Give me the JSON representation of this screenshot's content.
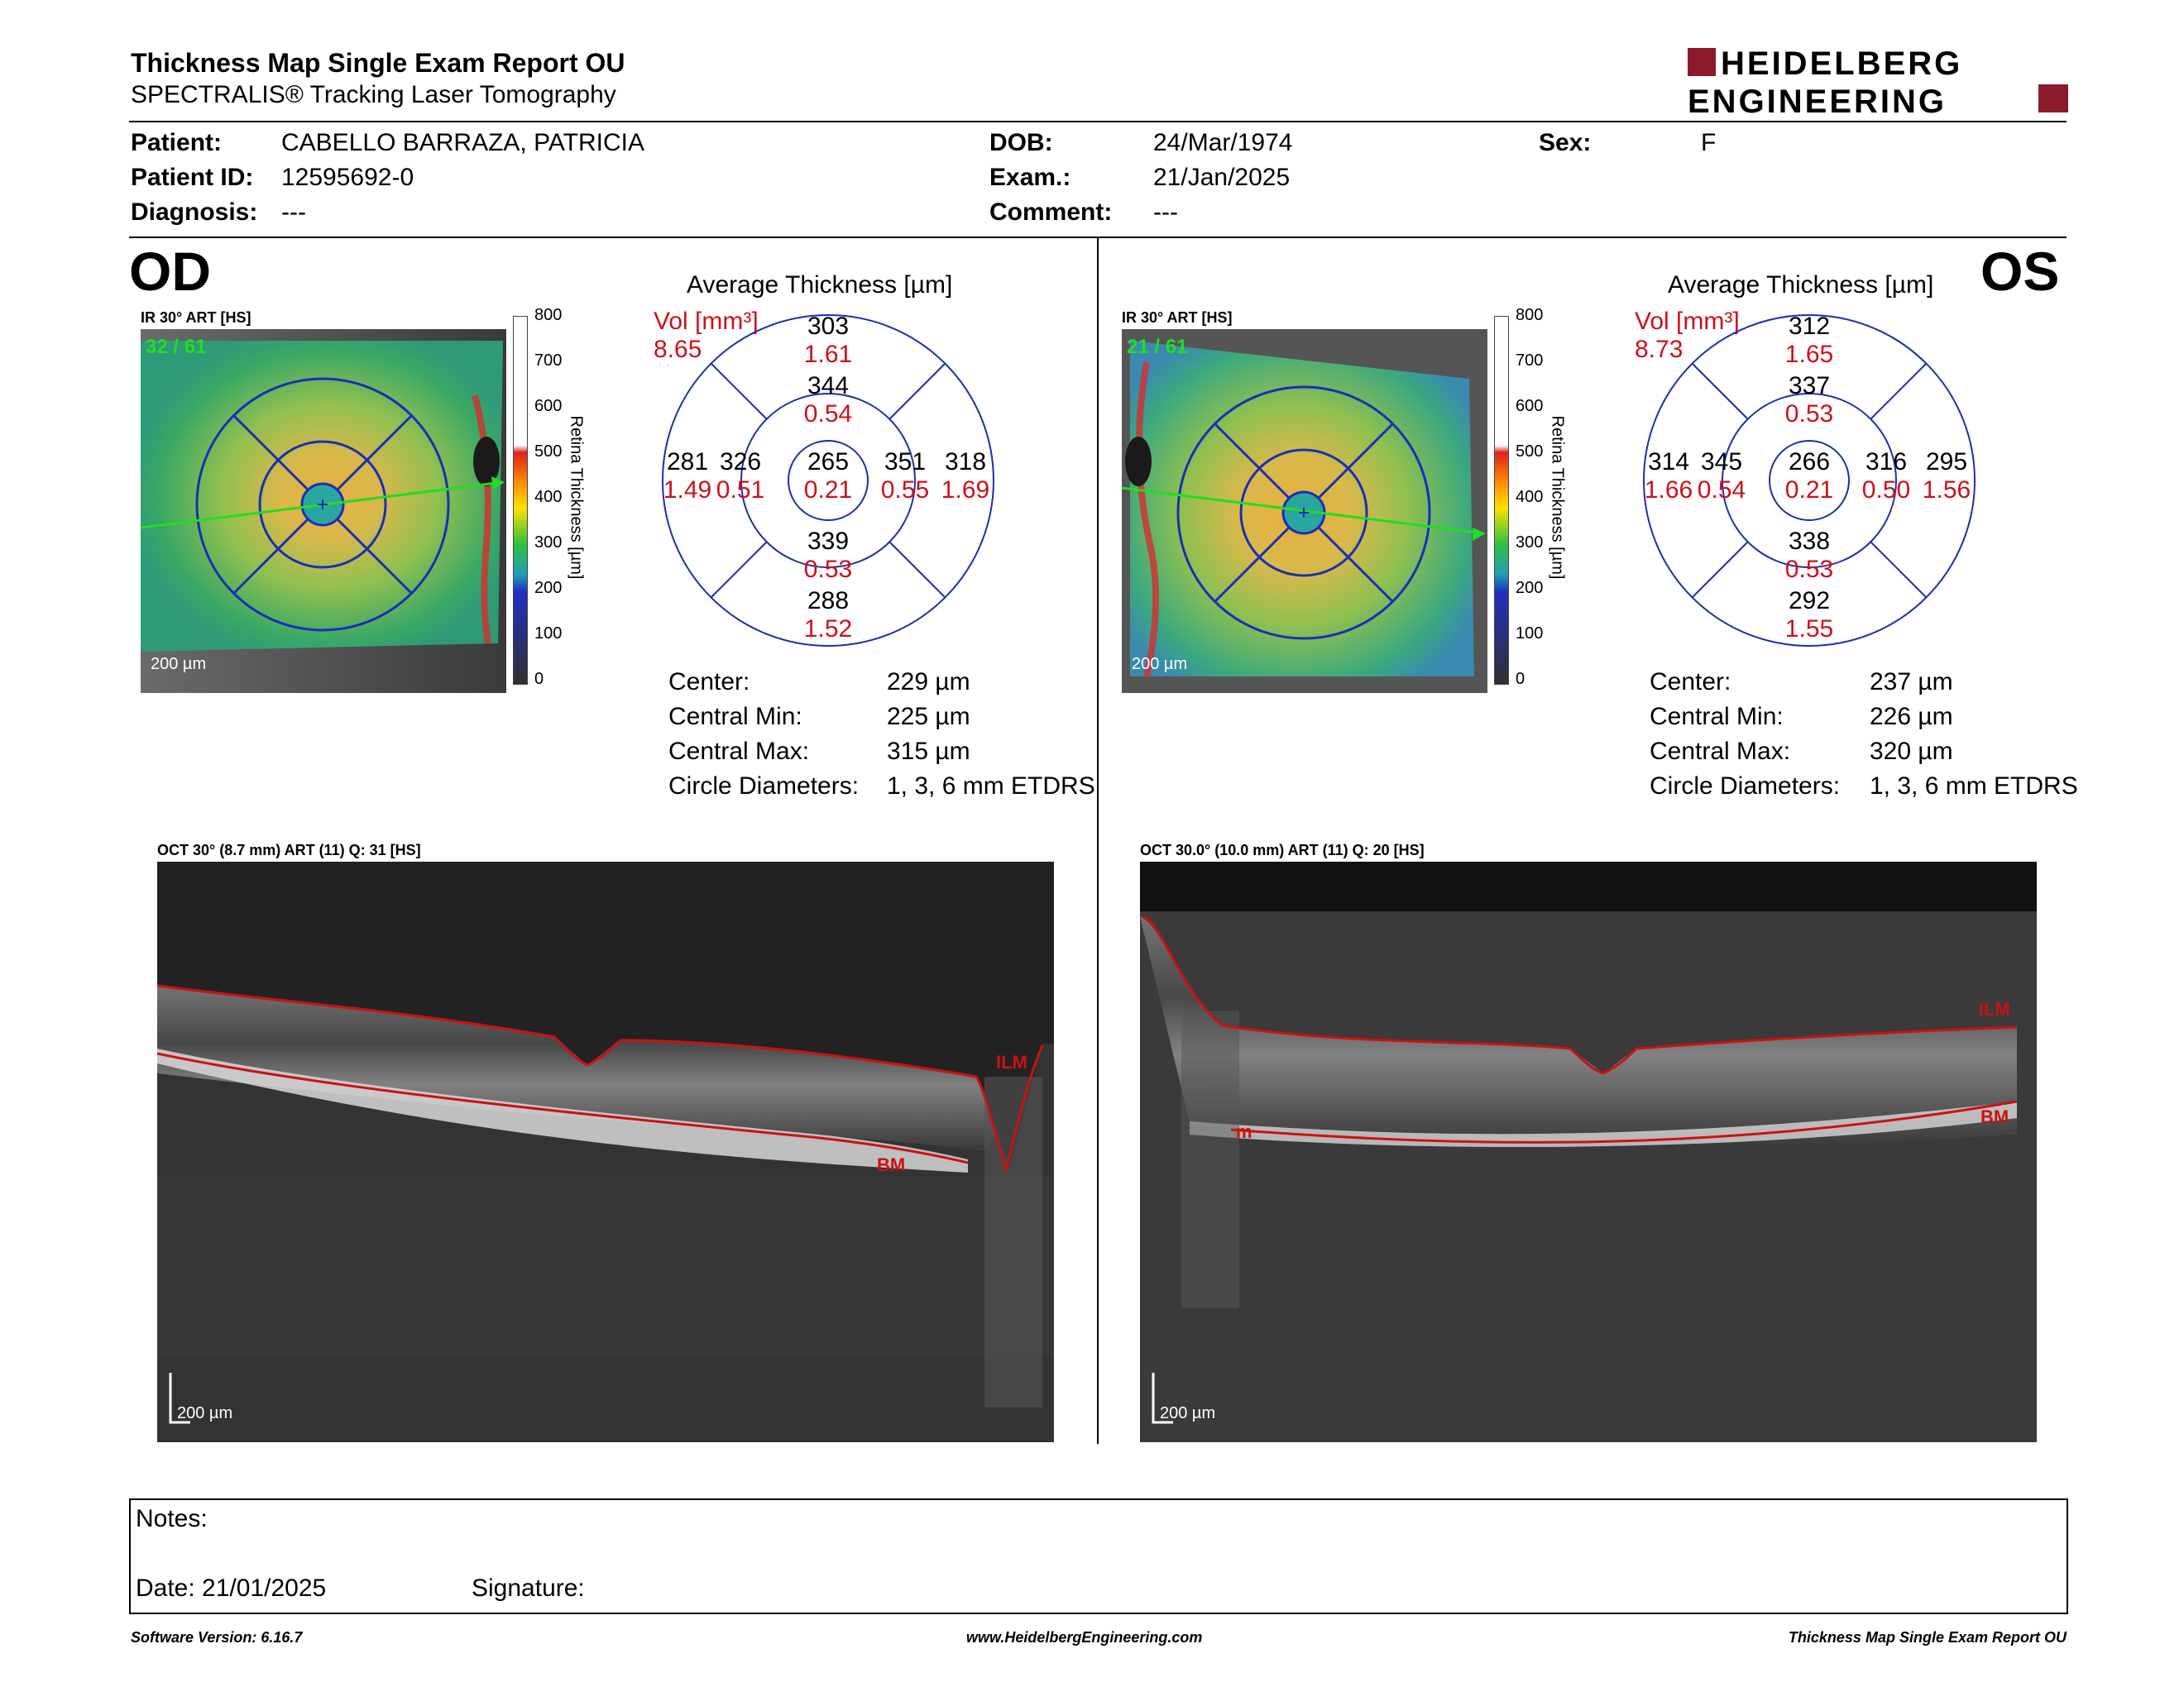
{
  "header": {
    "title": "Thickness Map Single Exam Report OU",
    "subtitle": "SPECTRALIS® Tracking Laser Tomography",
    "brand_line1": "HEIDELBERG",
    "brand_line2": "ENGINEERING",
    "brand_color": "#8b1a2b"
  },
  "patient": {
    "patient_label": "Patient:",
    "patient_value": "CABELLO BARRAZA, PATRICIA",
    "id_label": "Patient ID:",
    "id_value": "12595692-0",
    "diagnosis_label": "Diagnosis:",
    "diagnosis_value": "---",
    "dob_label": "DOB:",
    "dob_value": "24/Mar/1974",
    "exam_label": "Exam.:",
    "exam_value": "21/Jan/2025",
    "comment_label": "Comment:",
    "comment_value": "---",
    "sex_label": "Sex:",
    "sex_value": "F"
  },
  "od": {
    "eye_label": "OD",
    "ir_label": "IR 30° ART [HS]",
    "frame_count": "32 / 61",
    "scale_label": "200 µm",
    "colorbar_ticks": [
      "800",
      "700",
      "600",
      "500",
      "400",
      "300",
      "200",
      "100",
      "0"
    ],
    "colorbar_title": "Retina Thickness [µm]",
    "avg_title": "Average Thickness [µm]",
    "vol_label": "Vol [mm³]",
    "vol_value": "8.65",
    "grid": {
      "outer_sup_t": "303",
      "outer_sup_v": "1.61",
      "inner_sup_t": "344",
      "inner_sup_v": "0.54",
      "outer_left_t": "281",
      "outer_left_v": "1.49",
      "inner_left_t": "326",
      "inner_left_v": "0.51",
      "center_t": "265",
      "center_v": "0.21",
      "inner_right_t": "351",
      "inner_right_v": "0.55",
      "outer_right_t": "318",
      "outer_right_v": "1.69",
      "inner_inf_t": "339",
      "inner_inf_v": "0.53",
      "outer_inf_t": "288",
      "outer_inf_v": "1.52"
    },
    "stats": [
      {
        "label": "Center:",
        "value": "229 µm"
      },
      {
        "label": "Central Min:",
        "value": "225 µm"
      },
      {
        "label": "Central Max:",
        "value": "315 µm"
      },
      {
        "label": "Circle Diameters:",
        "value": "1, 3, 6 mm ETDRS"
      }
    ],
    "oct_label": "OCT 30° (8.7 mm) ART (11) Q: 31 [HS]",
    "ilm_label": "ILM",
    "bm_label": "BM",
    "oct_scale": "200 µm"
  },
  "os": {
    "eye_label": "OS",
    "ir_label": "IR 30° ART [HS]",
    "frame_count": "21 / 61",
    "scale_label": "200 µm",
    "colorbar_ticks": [
      "800",
      "700",
      "600",
      "500",
      "400",
      "300",
      "200",
      "100",
      "0"
    ],
    "colorbar_title": "Retina Thickness [µm]",
    "avg_title": "Average Thickness [µm]",
    "vol_label": "Vol [mm³]",
    "vol_value": "8.73",
    "grid": {
      "outer_sup_t": "312",
      "outer_sup_v": "1.65",
      "inner_sup_t": "337",
      "inner_sup_v": "0.53",
      "outer_left_t": "314",
      "outer_left_v": "1.66",
      "inner_left_t": "345",
      "inner_left_v": "0.54",
      "center_t": "266",
      "center_v": "0.21",
      "inner_right_t": "316",
      "inner_right_v": "0.50",
      "outer_right_t": "295",
      "outer_right_v": "1.56",
      "inner_inf_t": "338",
      "inner_inf_v": "0.53",
      "outer_inf_t": "292",
      "outer_inf_v": "1.55"
    },
    "stats": [
      {
        "label": "Center:",
        "value": "237 µm"
      },
      {
        "label": "Central Min:",
        "value": "226 µm"
      },
      {
        "label": "Central Max:",
        "value": "320 µm"
      },
      {
        "label": "Circle Diameters:",
        "value": "1, 3, 6 mm ETDRS"
      }
    ],
    "oct_label": "OCT 30.0° (10.0 mm) ART (11) Q: 20 [HS]",
    "ilm_label": "ILM",
    "bm_label": "BM",
    "bm_left_label": "m",
    "oct_scale": "200 µm"
  },
  "notes": {
    "notes_label": "Notes:",
    "date_label": "Date: 21/01/2025",
    "signature_label": "Signature:"
  },
  "footer": {
    "software": "Software Version: 6.16.7",
    "website": "www.HeidelbergEngineering.com",
    "report_name": "Thickness Map Single Exam Report OU"
  },
  "colors": {
    "grid_line": "#1a2fb5",
    "volume_red": "#d0101a",
    "segmentation_red": "#cc1111",
    "scan_line_green": "#22dd22"
  }
}
